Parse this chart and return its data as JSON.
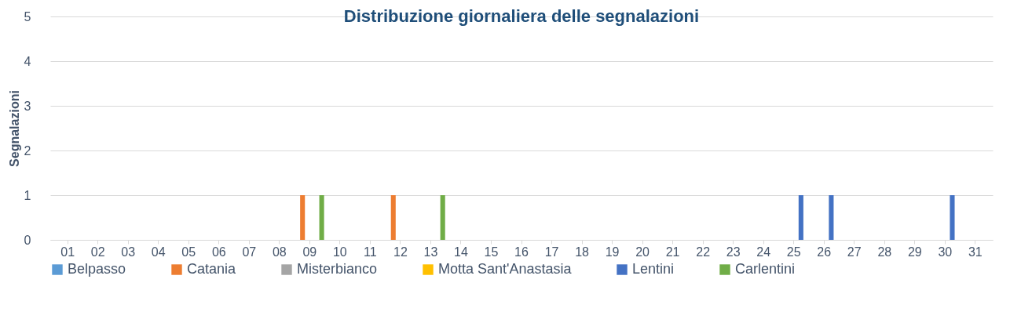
{
  "chart_data": {
    "type": "bar",
    "title": "Distribuzione giornaliera delle segnalazioni",
    "ylabel": "Segnalazioni",
    "categories": [
      "01",
      "02",
      "03",
      "04",
      "05",
      "06",
      "07",
      "08",
      "09",
      "10",
      "11",
      "12",
      "13",
      "14",
      "15",
      "16",
      "17",
      "18",
      "19",
      "20",
      "21",
      "22",
      "23",
      "24",
      "25",
      "26",
      "27",
      "28",
      "29",
      "30",
      "31"
    ],
    "series": [
      {
        "name": "Belpasso",
        "color": "#5b9bd5",
        "values": [
          0,
          0,
          0,
          0,
          0,
          0,
          0,
          0,
          0,
          0,
          0,
          0,
          0,
          0,
          0,
          0,
          0,
          0,
          0,
          0,
          0,
          0,
          0,
          0,
          0,
          0,
          0,
          0,
          0,
          0,
          0
        ]
      },
      {
        "name": "Catania",
        "color": "#ed7d31",
        "values": [
          0,
          0,
          0,
          0,
          0,
          0,
          0,
          0,
          1,
          0,
          0,
          1,
          0,
          0,
          0,
          0,
          0,
          0,
          0,
          0,
          0,
          0,
          0,
          0,
          0,
          0,
          0,
          0,
          0,
          0,
          0
        ]
      },
      {
        "name": "Misterbianco",
        "color": "#a5a5a5",
        "values": [
          0,
          0,
          0,
          0,
          0,
          0,
          0,
          0,
          0,
          0,
          0,
          0,
          0,
          0,
          0,
          0,
          0,
          0,
          0,
          0,
          0,
          0,
          0,
          0,
          0,
          0,
          0,
          0,
          0,
          0,
          0
        ]
      },
      {
        "name": "Motta Sant'Anastasia",
        "color": "#ffc000",
        "values": [
          0,
          0,
          0,
          0,
          0,
          0,
          0,
          0,
          0,
          0,
          0,
          0,
          0,
          0,
          0,
          0,
          0,
          0,
          0,
          0,
          0,
          0,
          0,
          0,
          0,
          0,
          0,
          0,
          0,
          0,
          0
        ]
      },
      {
        "name": "Lentini",
        "color": "#4472c4",
        "values": [
          0,
          0,
          0,
          0,
          0,
          0,
          0,
          0,
          0,
          0,
          0,
          0,
          0,
          0,
          0,
          0,
          0,
          0,
          0,
          0,
          0,
          0,
          0,
          0,
          1,
          1,
          0,
          0,
          0,
          1,
          0
        ]
      },
      {
        "name": "Carlentini",
        "color": "#70ad47",
        "values": [
          0,
          0,
          0,
          0,
          0,
          0,
          0,
          0,
          1,
          0,
          0,
          0,
          1,
          0,
          0,
          0,
          0,
          0,
          0,
          0,
          0,
          0,
          0,
          0,
          0,
          0,
          0,
          0,
          0,
          0,
          0
        ]
      }
    ],
    "ylim": [
      0,
      5
    ],
    "yticks": [
      0,
      1,
      2,
      3,
      4,
      5
    ],
    "grid": "y",
    "legend": "bottom"
  }
}
